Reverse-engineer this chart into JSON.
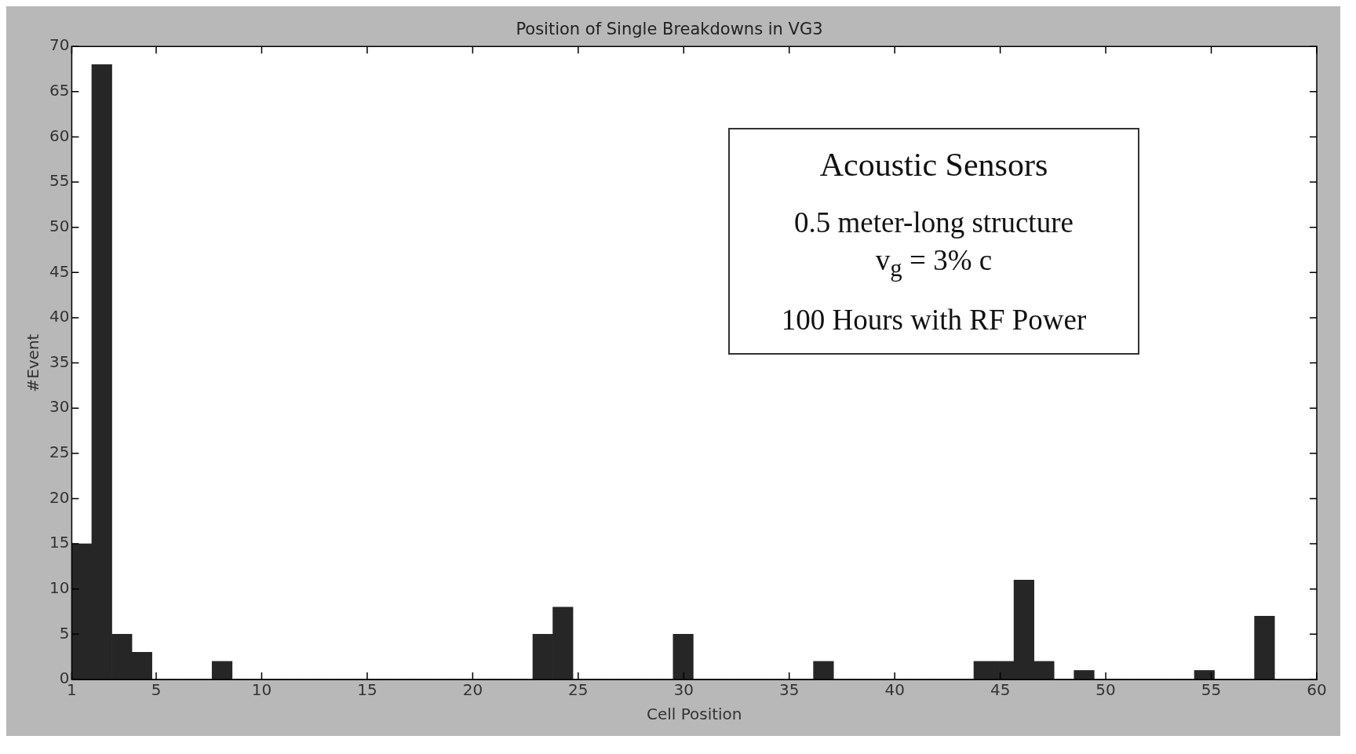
{
  "chart_data": {
    "type": "histogram",
    "title": "Position of Single Breakdowns in VG3",
    "xlabel": "Cell Position",
    "ylabel": "#Event",
    "bins": [
      1,
      1.95,
      2.9,
      3.85,
      4.8,
      5.75,
      6.7,
      7.65,
      8.6,
      9.55,
      10.5,
      11.45,
      12.4,
      13.35,
      14.3,
      15.25,
      16.2,
      17.15,
      18.1,
      19.05,
      20,
      20.95,
      21.9,
      22.85,
      23.8,
      24.75,
      25.7,
      26.65,
      27.6,
      28.55,
      29.5,
      30.45,
      31.4,
      32.35,
      33.3,
      34.25,
      35.2,
      36.15,
      37.1,
      38.05,
      39,
      39.95,
      40.9,
      41.85,
      42.8,
      43.75,
      44.7,
      45.65,
      46.6,
      47.55,
      48.5,
      49.45,
      50.4,
      51.35,
      52.3,
      53.25,
      54.2,
      55.15,
      56.1,
      57.05,
      58
    ],
    "values": [
      15,
      68,
      5,
      3,
      0,
      0,
      0,
      2,
      0,
      0,
      0,
      0,
      0,
      0,
      0,
      0,
      0,
      0,
      0,
      0,
      0,
      0,
      0,
      5,
      8,
      0,
      0,
      0,
      0,
      0,
      5,
      0,
      0,
      0,
      0,
      0,
      0,
      2,
      0,
      0,
      0,
      0,
      0,
      0,
      0,
      2,
      2,
      11,
      2,
      0,
      1,
      0,
      0,
      0,
      0,
      0,
      1,
      0,
      0,
      7
    ],
    "color": "#262626",
    "xlim": [
      1,
      60
    ],
    "xticks": [
      1,
      5,
      10,
      15,
      20,
      25,
      30,
      35,
      40,
      45,
      50,
      55,
      60
    ],
    "ylim": [
      0,
      70
    ],
    "yticks": [
      0,
      5,
      10,
      15,
      20,
      25,
      30,
      35,
      40,
      45,
      50,
      55,
      60,
      65,
      70
    ],
    "grid": false,
    "legend": false,
    "annotations": [
      "Acoustic Sensors",
      "0.5 meter-long structure",
      "v$_{g}$ = 3% c",
      "100 Hours with RF Power"
    ]
  }
}
